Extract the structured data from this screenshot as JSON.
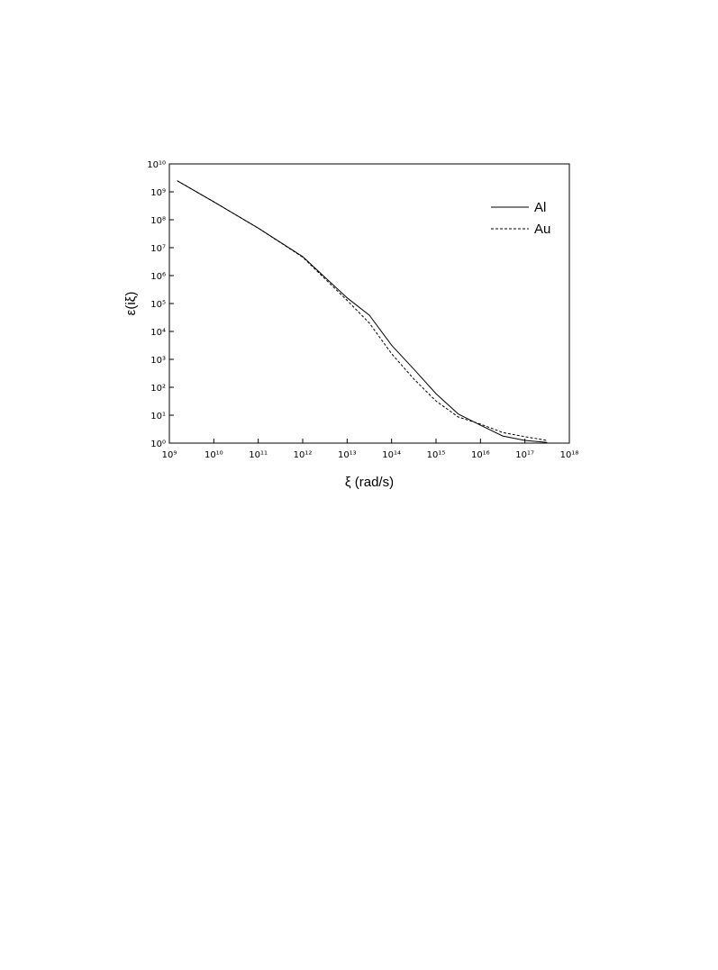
{
  "chart_data": {
    "type": "line",
    "x_label": "ξ (rad/s)",
    "y_label": "ε(iξ)",
    "log_x": true,
    "log_y": true,
    "legend": "upper right",
    "xlim": [
      1000000000.0,
      1e+18
    ],
    "ylim": [
      1,
      10000000000.0
    ],
    "xticks": [
      {
        "value": 1000000000.0,
        "label": "10⁹"
      },
      {
        "value": 10000000000.0,
        "label": "10¹⁰"
      },
      {
        "value": 100000000000.0,
        "label": "10¹¹"
      },
      {
        "value": 1000000000000.0,
        "label": "10¹²"
      },
      {
        "value": 10000000000000.0,
        "label": "10¹³"
      },
      {
        "value": 100000000000000.0,
        "label": "10¹⁴"
      },
      {
        "value": 1000000000000000.0,
        "label": "10¹⁵"
      },
      {
        "value": 1e+16,
        "label": "10¹⁶"
      },
      {
        "value": 1e+17,
        "label": "10¹⁷"
      },
      {
        "value": 1e+18,
        "label": "10¹⁸"
      }
    ],
    "yticks": [
      {
        "value": 1,
        "label": "10⁰"
      },
      {
        "value": 10,
        "label": "10¹"
      },
      {
        "value": 100,
        "label": "10²"
      },
      {
        "value": 1000,
        "label": "10³"
      },
      {
        "value": 10000,
        "label": "10⁴"
      },
      {
        "value": 100000,
        "label": "10⁵"
      },
      {
        "value": 1000000,
        "label": "10⁶"
      },
      {
        "value": 10000000,
        "label": "10⁷"
      },
      {
        "value": 100000000,
        "label": "10⁸"
      },
      {
        "value": 1000000000,
        "label": "10⁹"
      },
      {
        "value": 10000000000,
        "label": "10¹⁰"
      }
    ],
    "x": [
      1500000000.0,
      10000000000.0,
      100000000000.0,
      1000000000000.0,
      10000000000000.0,
      31600000000000.0,
      100000000000000.0,
      316000000000000.0,
      1000000000000000.0,
      3160000000000000.0,
      1e+16,
      3.16e+16,
      1e+17,
      3.16e+17
    ],
    "series": [
      {
        "name": "Al",
        "color": "#000000",
        "dash": "solid",
        "values": [
          2500000000.0,
          440000000.0,
          50000000.0,
          4800000.0,
          160000.0,
          38000.0,
          3200,
          450,
          59,
          11,
          4.4,
          1.8,
          1.25,
          1.05
        ]
      },
      {
        "name": "Au",
        "color": "#000000",
        "dash": "dashed",
        "values": [
          2500000000.0,
          440000000.0,
          50000000.0,
          4600000.0,
          130000.0,
          20000.0,
          1600,
          200,
          32,
          8.6,
          4.8,
          2.4,
          1.7,
          1.25
        ]
      }
    ]
  }
}
